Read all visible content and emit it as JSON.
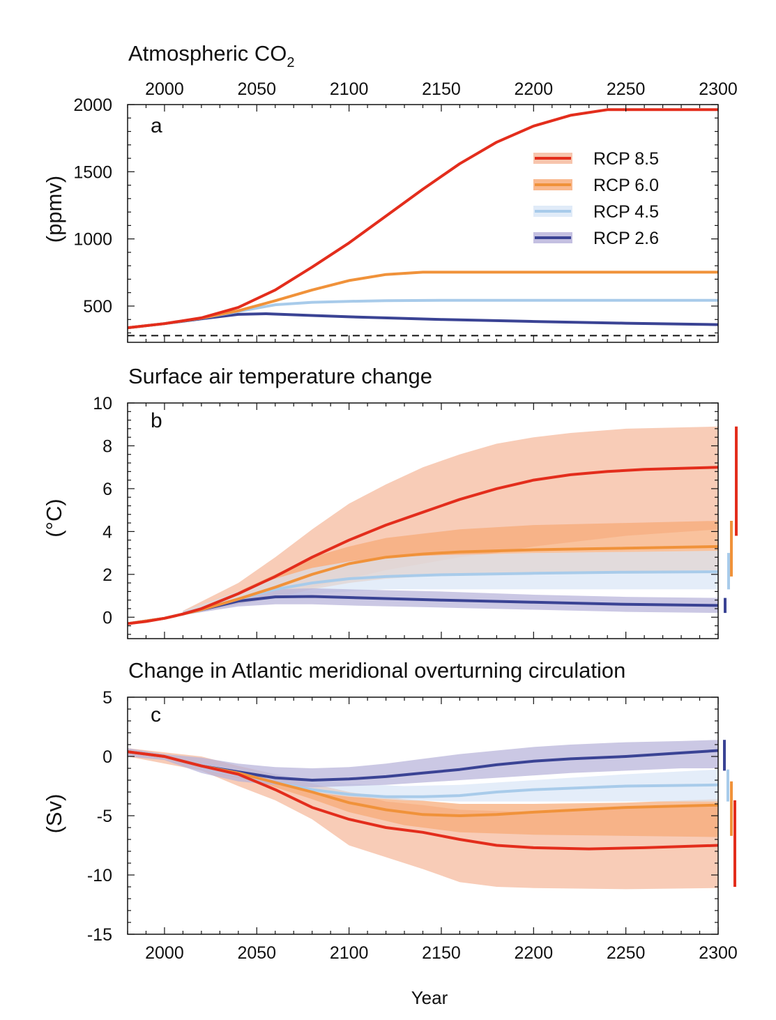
{
  "figure": {
    "x_axis_label": "Year",
    "x_ticks": [
      2000,
      2050,
      2100,
      2150,
      2200,
      2250,
      2300
    ],
    "colors": {
      "rcp85": "#e32d1c",
      "rcp60": "#f0923a",
      "rcp45": "#a8cbea",
      "rcp26": "#3a4394",
      "rcp85_band": "#f5b698",
      "rcp60_band": "#f7a873",
      "rcp45_band": "#d8e6f6",
      "rcp26_band": "#b5b0d9"
    }
  },
  "chart_data": [
    {
      "panel": "a",
      "type": "line",
      "title": "Atmospheric CO",
      "title_subscript": "2",
      "ylabel": "(ppmv)",
      "xlim": [
        1980,
        2300
      ],
      "ylim": [
        230,
        2000
      ],
      "y_ticks": [
        500,
        1000,
        1500,
        2000
      ],
      "x_ticks_on_top": true,
      "reference_line": {
        "y": 280,
        "style": "dashed"
      },
      "legend": {
        "placement": "top-right",
        "entries": [
          "RCP 8.5",
          "RCP 6.0",
          "RCP 4.5",
          "RCP 2.6"
        ]
      },
      "series": [
        {
          "name": "RCP 8.5",
          "color_key": "rcp85",
          "x": [
            1980,
            2000,
            2020,
            2040,
            2060,
            2080,
            2100,
            2120,
            2140,
            2160,
            2180,
            2200,
            2220,
            2240,
            2250,
            2300
          ],
          "y": [
            338,
            369,
            412,
            490,
            620,
            790,
            970,
            1170,
            1370,
            1560,
            1720,
            1840,
            1920,
            1962,
            1962,
            1962
          ]
        },
        {
          "name": "RCP 6.0",
          "color_key": "rcp60",
          "x": [
            1980,
            2000,
            2020,
            2040,
            2060,
            2080,
            2100,
            2120,
            2140,
            2150,
            2300
          ],
          "y": [
            338,
            369,
            410,
            465,
            540,
            620,
            690,
            735,
            752,
            752,
            752
          ]
        },
        {
          "name": "RCP 4.5",
          "color_key": "rcp45",
          "x": [
            1980,
            2000,
            2020,
            2040,
            2060,
            2080,
            2100,
            2120,
            2150,
            2300
          ],
          "y": [
            338,
            369,
            410,
            460,
            510,
            528,
            535,
            540,
            543,
            543
          ]
        },
        {
          "name": "RCP 2.6",
          "color_key": "rcp26",
          "x": [
            1980,
            2000,
            2020,
            2040,
            2055,
            2080,
            2100,
            2150,
            2200,
            2250,
            2300
          ],
          "y": [
            338,
            369,
            405,
            438,
            443,
            430,
            420,
            400,
            385,
            372,
            362
          ]
        }
      ]
    },
    {
      "panel": "b",
      "type": "line",
      "title": "Surface air temperature change",
      "ylabel": "(°C)",
      "xlim": [
        1980,
        2300
      ],
      "ylim": [
        -1,
        10
      ],
      "y_ticks": [
        0,
        2,
        4,
        6,
        8,
        10
      ],
      "series": [
        {
          "name": "RCP 8.5",
          "color_key": "rcp85",
          "x": [
            1980,
            1990,
            2000,
            2010,
            2020,
            2040,
            2060,
            2080,
            2100,
            2120,
            2140,
            2160,
            2180,
            2200,
            2220,
            2240,
            2260,
            2280,
            2300
          ],
          "y": [
            -0.3,
            -0.2,
            -0.05,
            0.15,
            0.4,
            1.1,
            1.9,
            2.8,
            3.6,
            4.3,
            4.9,
            5.5,
            6.0,
            6.4,
            6.65,
            6.8,
            6.9,
            6.95,
            7.0
          ]
        },
        {
          "name": "RCP 6.0",
          "color_key": "rcp60",
          "x": [
            1980,
            2000,
            2010,
            2020,
            2040,
            2060,
            2080,
            2100,
            2120,
            2140,
            2160,
            2200,
            2250,
            2300
          ],
          "y": [
            -0.3,
            -0.05,
            0.15,
            0.35,
            0.85,
            1.4,
            2.0,
            2.5,
            2.8,
            2.95,
            3.05,
            3.15,
            3.22,
            3.3
          ]
        },
        {
          "name": "RCP 4.5",
          "color_key": "rcp45",
          "x": [
            1980,
            2000,
            2010,
            2020,
            2040,
            2060,
            2080,
            2100,
            2120,
            2150,
            2200,
            2250,
            2300
          ],
          "y": [
            -0.3,
            -0.05,
            0.15,
            0.35,
            0.85,
            1.3,
            1.6,
            1.8,
            1.9,
            1.98,
            2.05,
            2.1,
            2.12
          ]
        },
        {
          "name": "RCP 2.6",
          "color_key": "rcp26",
          "x": [
            1980,
            2000,
            2010,
            2020,
            2040,
            2060,
            2080,
            2100,
            2150,
            2200,
            2250,
            2300
          ],
          "y": [
            -0.3,
            -0.05,
            0.15,
            0.35,
            0.75,
            0.95,
            0.97,
            0.92,
            0.8,
            0.7,
            0.6,
            0.55
          ]
        }
      ],
      "bands": [
        {
          "color_key": "rcp85_band",
          "x": [
            2010,
            2040,
            2060,
            2080,
            2100,
            2120,
            2140,
            2160,
            2180,
            2200,
            2220,
            2250,
            2300
          ],
          "upper": [
            0.3,
            1.6,
            2.8,
            4.1,
            5.3,
            6.2,
            7.0,
            7.6,
            8.1,
            8.4,
            8.6,
            8.8,
            8.9
          ],
          "lower": [
            0.1,
            0.6,
            1.0,
            1.4,
            1.8,
            2.2,
            2.5,
            2.8,
            3.0,
            3.3,
            3.5,
            3.8,
            4.1
          ]
        },
        {
          "color_key": "rcp60_band",
          "x": [
            2010,
            2040,
            2060,
            2080,
            2100,
            2120,
            2140,
            2160,
            2200,
            2250,
            2300
          ],
          "upper": [
            0.3,
            1.2,
            2.0,
            2.8,
            3.3,
            3.7,
            3.9,
            4.1,
            4.3,
            4.4,
            4.5
          ],
          "lower": [
            0.1,
            0.6,
            0.9,
            1.3,
            1.6,
            1.8,
            1.9,
            2.0,
            2.1,
            2.15,
            2.2
          ]
        },
        {
          "color_key": "rcp45_band",
          "x": [
            2010,
            2040,
            2060,
            2080,
            2100,
            2120,
            2150,
            2200,
            2250,
            2300
          ],
          "upper": [
            0.3,
            1.2,
            1.8,
            2.3,
            2.6,
            2.8,
            2.9,
            3.0,
            3.05,
            3.1
          ],
          "lower": [
            0.1,
            0.6,
            0.9,
            1.1,
            1.2,
            1.3,
            1.3,
            1.3,
            1.3,
            1.3
          ]
        },
        {
          "color_key": "rcp26_band",
          "x": [
            2010,
            2040,
            2060,
            2080,
            2100,
            2150,
            2200,
            2250,
            2300
          ],
          "upper": [
            0.25,
            0.9,
            1.3,
            1.35,
            1.3,
            1.2,
            1.05,
            0.95,
            0.9
          ],
          "lower": [
            0.1,
            0.5,
            0.6,
            0.6,
            0.55,
            0.45,
            0.35,
            0.25,
            0.2
          ]
        }
      ],
      "range_bars": [
        {
          "color_key": "rcp85",
          "low": 3.8,
          "high": 8.9
        },
        {
          "color_key": "rcp60",
          "low": 1.9,
          "high": 4.5
        },
        {
          "color_key": "rcp45",
          "low": 1.3,
          "high": 3.0
        },
        {
          "color_key": "rcp26",
          "low": 0.2,
          "high": 0.9
        }
      ]
    },
    {
      "panel": "c",
      "type": "line",
      "title": "Change in Atlantic meridional overturning circulation",
      "ylabel": "(Sv)",
      "xlim": [
        1980,
        2300
      ],
      "ylim": [
        -15,
        5
      ],
      "y_ticks": [
        -15,
        -10,
        -5,
        0,
        5
      ],
      "series": [
        {
          "name": "RCP 8.5",
          "color_key": "rcp85",
          "x": [
            1980,
            2000,
            2020,
            2040,
            2060,
            2080,
            2100,
            2120,
            2140,
            2160,
            2180,
            2200,
            2230,
            2260,
            2300
          ],
          "y": [
            0.4,
            0.0,
            -0.8,
            -1.5,
            -2.8,
            -4.3,
            -5.3,
            -6.0,
            -6.4,
            -7.0,
            -7.5,
            -7.7,
            -7.8,
            -7.7,
            -7.5
          ]
        },
        {
          "name": "RCP 6.0",
          "color_key": "rcp60",
          "x": [
            1980,
            2000,
            2020,
            2040,
            2060,
            2080,
            2100,
            2120,
            2140,
            2160,
            2180,
            2200,
            2250,
            2300
          ],
          "y": [
            0.4,
            0.0,
            -0.8,
            -1.4,
            -2.2,
            -3.0,
            -3.9,
            -4.5,
            -4.9,
            -5.0,
            -4.9,
            -4.7,
            -4.3,
            -4.1
          ]
        },
        {
          "name": "RCP 4.5",
          "color_key": "rcp45",
          "x": [
            1980,
            2000,
            2020,
            2040,
            2060,
            2080,
            2100,
            2120,
            2140,
            2160,
            2180,
            2200,
            2250,
            2300
          ],
          "y": [
            0.4,
            0.0,
            -0.8,
            -1.4,
            -2.2,
            -2.8,
            -3.2,
            -3.4,
            -3.4,
            -3.3,
            -3.0,
            -2.8,
            -2.5,
            -2.4
          ]
        },
        {
          "name": "RCP 2.6",
          "color_key": "rcp26",
          "x": [
            1980,
            2000,
            2020,
            2040,
            2060,
            2080,
            2100,
            2120,
            2140,
            2160,
            2180,
            2200,
            2220,
            2250,
            2280,
            2300
          ],
          "y": [
            0.4,
            0.0,
            -0.8,
            -1.3,
            -1.8,
            -2.0,
            -1.9,
            -1.7,
            -1.4,
            -1.1,
            -0.7,
            -0.4,
            -0.2,
            0.0,
            0.3,
            0.5
          ]
        }
      ],
      "bands": [
        {
          "color_key": "rcp85_band",
          "x": [
            1980,
            2020,
            2040,
            2060,
            2080,
            2100,
            2120,
            2140,
            2160,
            2180,
            2200,
            2250,
            2300
          ],
          "upper": [
            0.7,
            0.0,
            -0.8,
            -1.5,
            -2.3,
            -3.0,
            -3.8,
            -4.1,
            -4.5,
            -4.6,
            -4.7,
            -4.3,
            -4.0
          ],
          "lower": [
            0.0,
            -1.2,
            -2.5,
            -3.7,
            -5.3,
            -7.5,
            -8.5,
            -9.5,
            -10.6,
            -11.0,
            -11.1,
            -11.2,
            -11.1
          ]
        },
        {
          "color_key": "rcp60_band",
          "x": [
            2020,
            2050,
            2080,
            2100,
            2130,
            2160,
            2200,
            2250,
            2300
          ],
          "upper": [
            -0.5,
            -1.2,
            -2.3,
            -3.0,
            -3.6,
            -4.0,
            -4.0,
            -3.9,
            -3.6
          ],
          "lower": [
            -1.2,
            -2.1,
            -3.6,
            -4.7,
            -5.8,
            -6.4,
            -6.6,
            -6.7,
            -6.8
          ]
        },
        {
          "color_key": "rcp45_band",
          "x": [
            2020,
            2050,
            2080,
            2100,
            2130,
            2160,
            2200,
            2250,
            2300
          ],
          "upper": [
            -0.5,
            -1.2,
            -2.0,
            -2.3,
            -2.5,
            -2.4,
            -2.0,
            -1.5,
            -1.1
          ],
          "lower": [
            -1.2,
            -2.0,
            -3.0,
            -3.4,
            -3.7,
            -3.8,
            -3.8,
            -3.8,
            -3.8
          ]
        },
        {
          "color_key": "rcp26_band",
          "x": [
            1980,
            2000,
            2020,
            2040,
            2060,
            2080,
            2100,
            2120,
            2140,
            2160,
            2180,
            2200,
            2220,
            2250,
            2280,
            2300
          ],
          "upper": [
            0.7,
            0.2,
            -0.1,
            -0.6,
            -0.9,
            -1.0,
            -0.9,
            -0.6,
            -0.2,
            0.2,
            0.5,
            0.8,
            1.0,
            1.2,
            1.3,
            1.4
          ],
          "lower": [
            0.0,
            -0.3,
            -1.4,
            -2.1,
            -2.4,
            -2.6,
            -2.5,
            -2.4,
            -2.2,
            -2.0,
            -1.8,
            -1.6,
            -1.4,
            -1.2,
            -1.0,
            -1.0
          ]
        }
      ],
      "range_bars": [
        {
          "color_key": "rcp26",
          "low": -1.2,
          "high": 1.4
        },
        {
          "color_key": "rcp45",
          "low": -3.8,
          "high": -1.1
        },
        {
          "color_key": "rcp60",
          "low": -6.7,
          "high": -2.1
        },
        {
          "color_key": "rcp85",
          "low": -11.0,
          "high": -3.7
        }
      ]
    }
  ]
}
